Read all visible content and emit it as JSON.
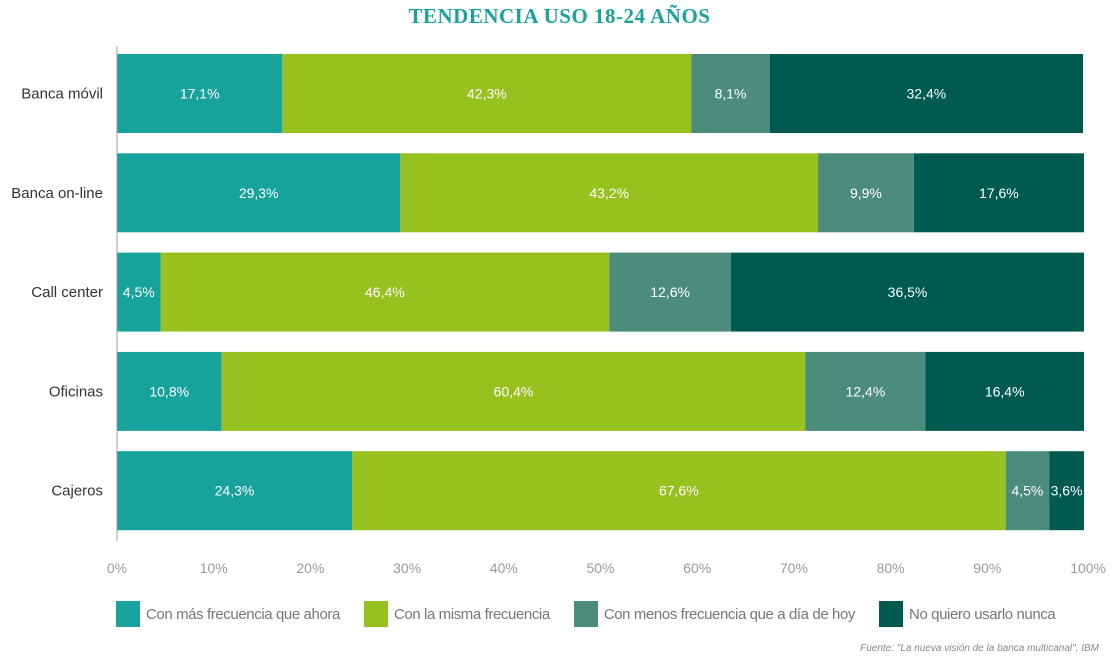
{
  "chart_data": {
    "type": "bar",
    "orientation": "horizontal",
    "stacked": true,
    "title": "TENDENCIA USO 18-24 AÑOS",
    "categories": [
      "Banca móvil",
      "Banca on-line",
      "Call center",
      "Oficinas",
      "Cajeros"
    ],
    "series": [
      {
        "name": "Con más frecuencia que ahora",
        "color": "#17a39b",
        "values": [
          17.1,
          29.3,
          4.5,
          10.8,
          24.3
        ],
        "labels": [
          "17,1%",
          "29,3%",
          "4,5%",
          "10,8%",
          "24,3%"
        ]
      },
      {
        "name": "Con la misma frecuencia",
        "color": "#97c11f",
        "values": [
          42.3,
          43.2,
          46.4,
          60.4,
          67.6
        ],
        "labels": [
          "42,3%",
          "43,2%",
          "46,4%",
          "60,4%",
          "67,6%"
        ]
      },
      {
        "name": "Con menos frecuencia que a día de hoy",
        "color": "#4b8c7d",
        "values": [
          8.1,
          9.9,
          12.6,
          12.4,
          4.5
        ],
        "labels": [
          "8,1%",
          "9,9%",
          "12,6%",
          "12,4%",
          "4,5%"
        ]
      },
      {
        "name": "No quiero usarlo nunca",
        "color": "#005a50",
        "values": [
          32.4,
          17.6,
          36.5,
          16.4,
          3.6
        ],
        "labels": [
          "32,4%",
          "17,6%",
          "36,5%",
          "16,4%",
          "3,6%"
        ]
      }
    ],
    "xlim": [
      0,
      100
    ],
    "xticks": [
      0,
      10,
      20,
      30,
      40,
      50,
      60,
      70,
      80,
      90,
      100
    ],
    "xtick_labels": [
      "0%",
      "10%",
      "20%",
      "30%",
      "40%",
      "50%",
      "60%",
      "70%",
      "80%",
      "90%",
      "100%"
    ],
    "legend_position": "bottom",
    "grid": false
  },
  "source_note": "Fuente: \"La nueva visión de la banca multicanal\", IBM"
}
